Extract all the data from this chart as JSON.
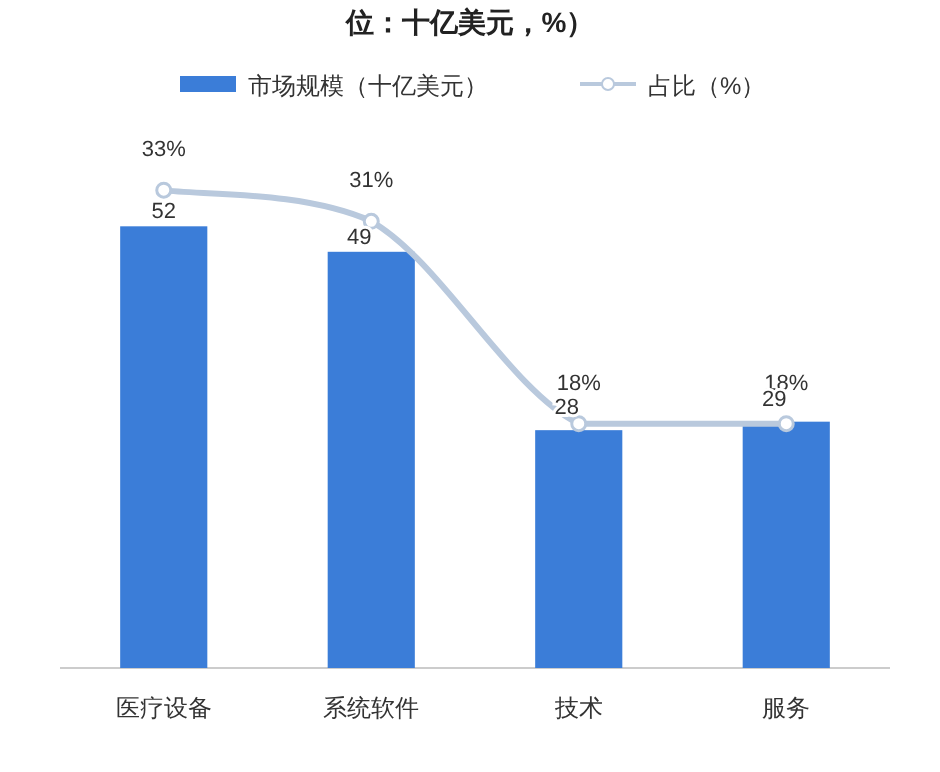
{
  "chart_data": {
    "type": "bar",
    "title": "位：十亿美元，%）",
    "categories": [
      "医疗设备",
      "系统软件",
      "技术",
      "服务"
    ],
    "legend": "top",
    "tick_labels": "x",
    "series": [
      {
        "name": "市场规模（十亿美元）",
        "color": "#3b7dd8",
        "values": [
          52,
          49,
          28,
          29
        ],
        "value_labels": [
          "52",
          "49",
          "28",
          "29"
        ]
      },
      {
        "name": "占比（%）",
        "type": "line",
        "axis": "y2",
        "color": "#b9c9dd",
        "marker": "circle",
        "values": [
          33,
          31,
          18,
          18
        ],
        "value_labels": [
          "33%",
          "31%",
          "18%",
          "18%"
        ]
      }
    ]
  }
}
